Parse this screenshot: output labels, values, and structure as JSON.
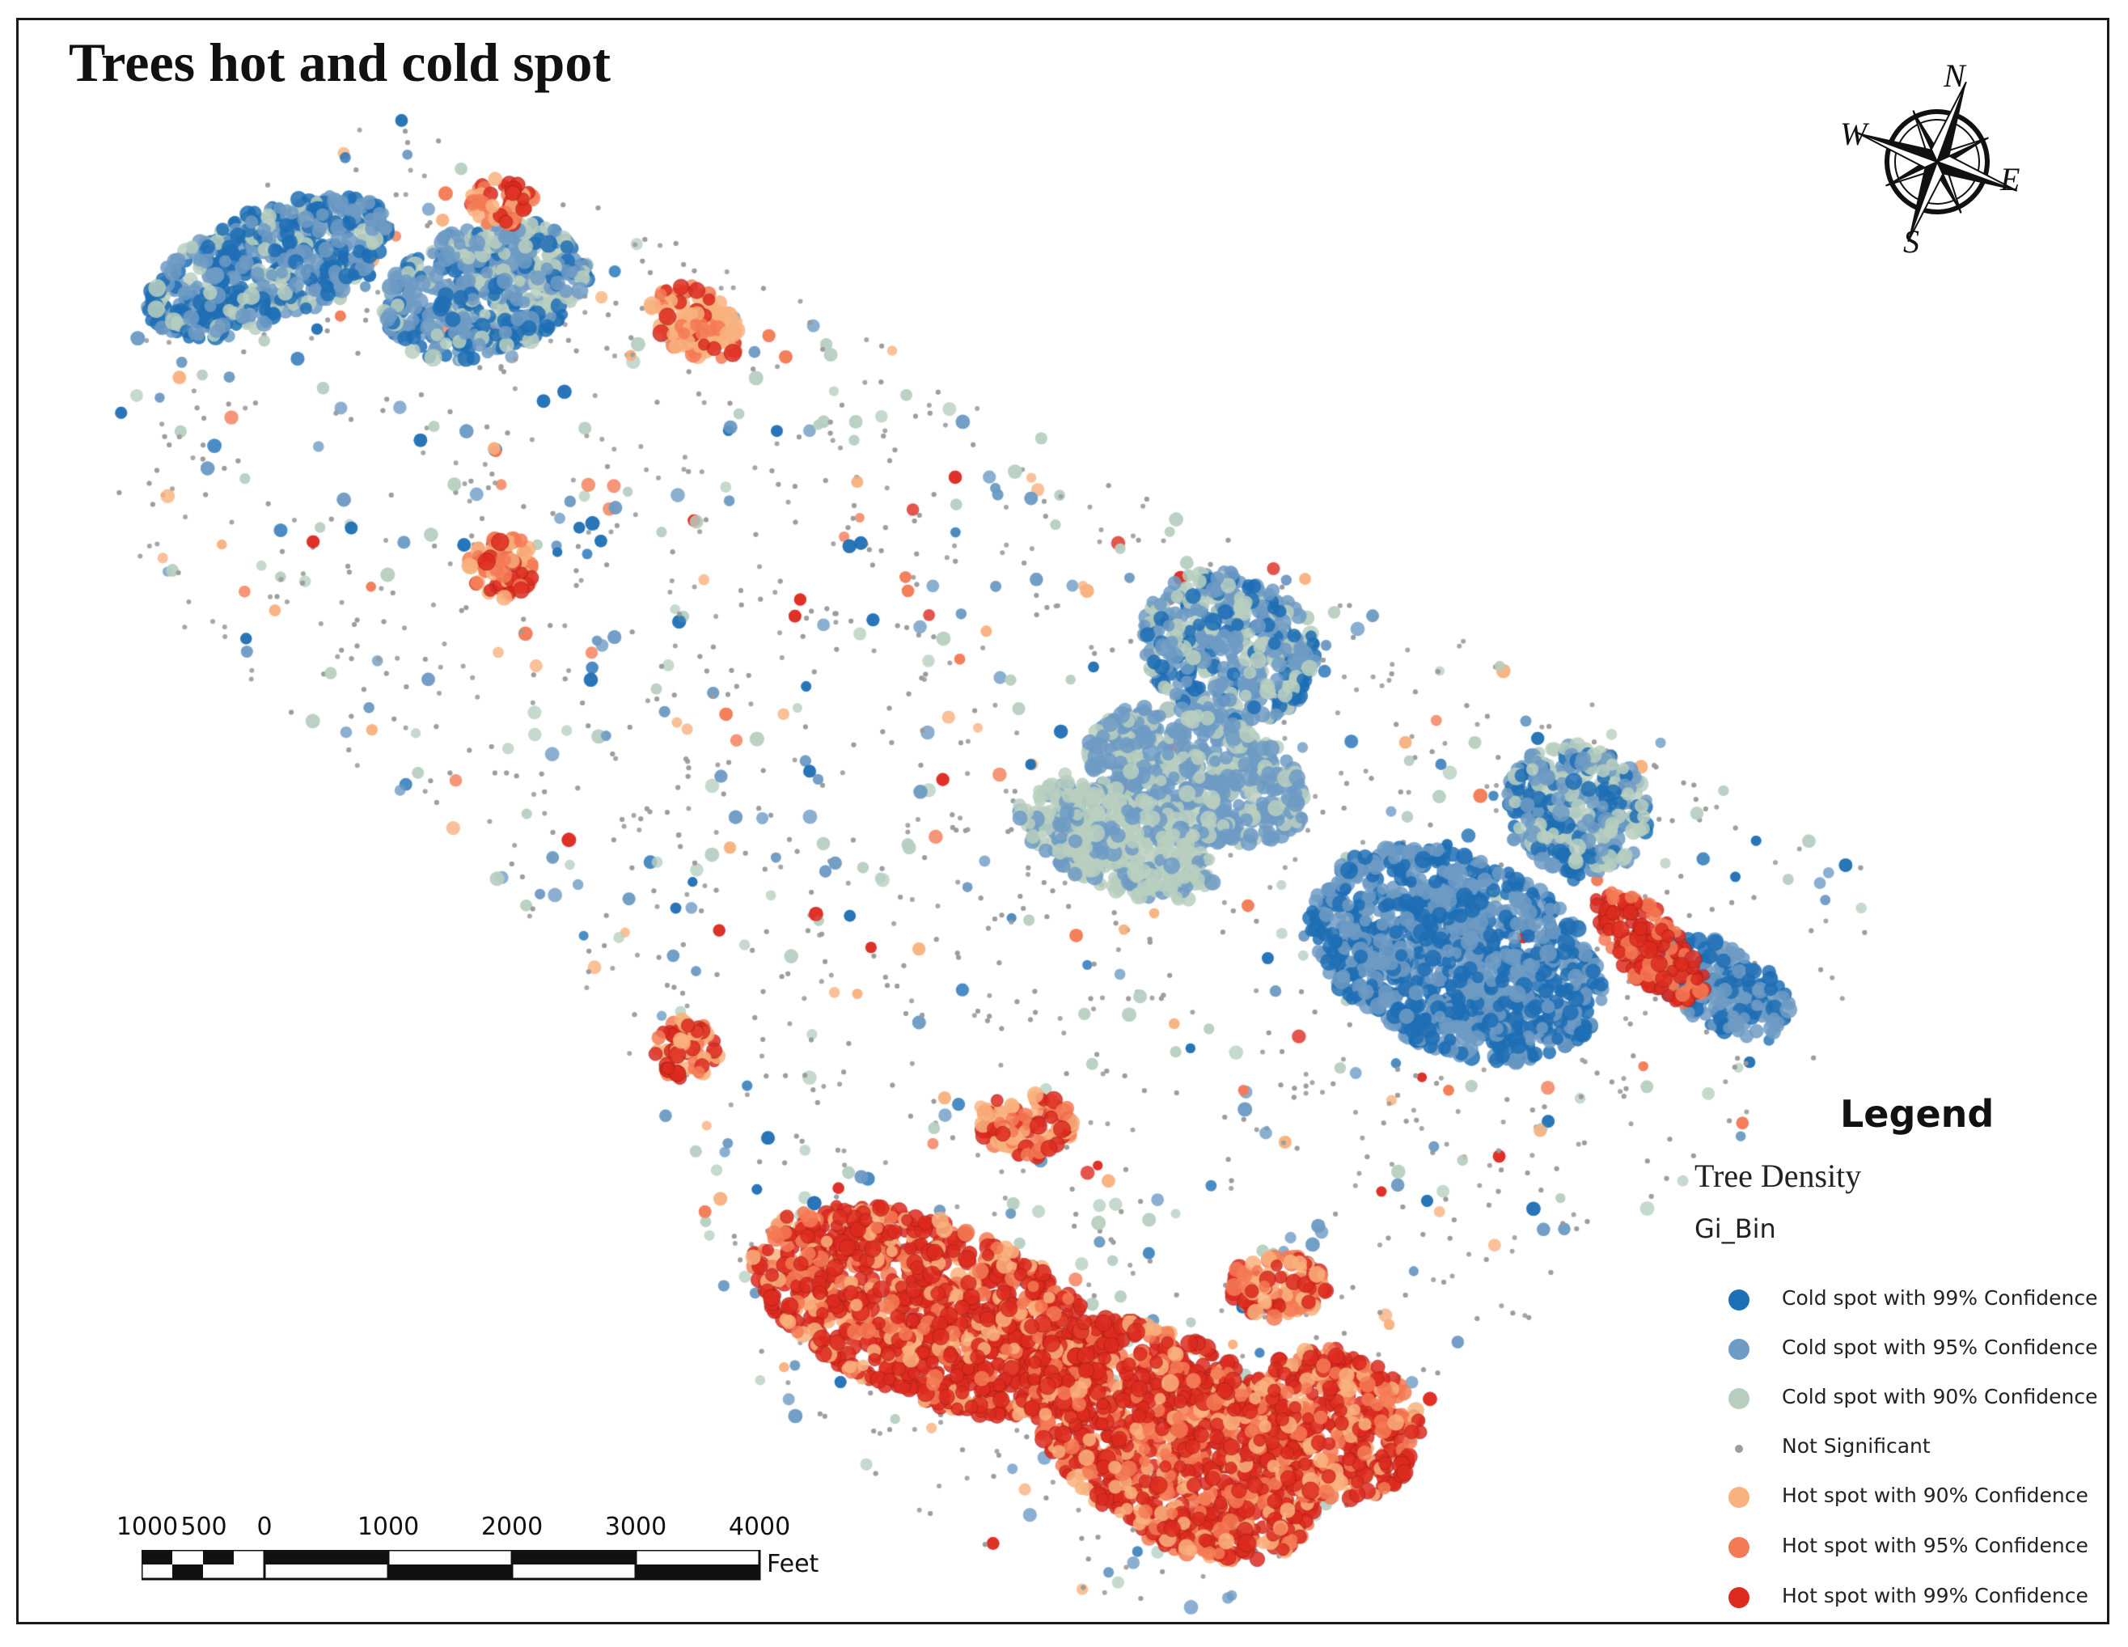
{
  "title": "Trees hot and cold spot",
  "compass": {
    "north": "N",
    "south": "S",
    "east": "E",
    "west": "W"
  },
  "legend": {
    "title": "Legend",
    "layer": "Tree Density",
    "field": "Gi_Bin",
    "items": [
      {
        "label": "Cold spot with 99% Confidence",
        "color": "#1f6fb5"
      },
      {
        "label": "Cold spot with 95% Confidence",
        "color": "#6e9bc4"
      },
      {
        "label": "Cold spot with 90% Confidence",
        "color": "#b8cfc0"
      },
      {
        "label": "Not Significant",
        "color": "#9c9c9c"
      },
      {
        "label": "Hot spot with 90% Confidence",
        "color": "#f9b27e"
      },
      {
        "label": "Hot spot with 95% Confidence",
        "color": "#f47a55"
      },
      {
        "label": "Hot spot with 99% Confidence",
        "color": "#dd2a20"
      }
    ]
  },
  "scale_bar": {
    "ticks": [
      "1000",
      "500",
      "0",
      "1000",
      "2000",
      "3000",
      "4000"
    ],
    "unit": "Feet"
  }
}
